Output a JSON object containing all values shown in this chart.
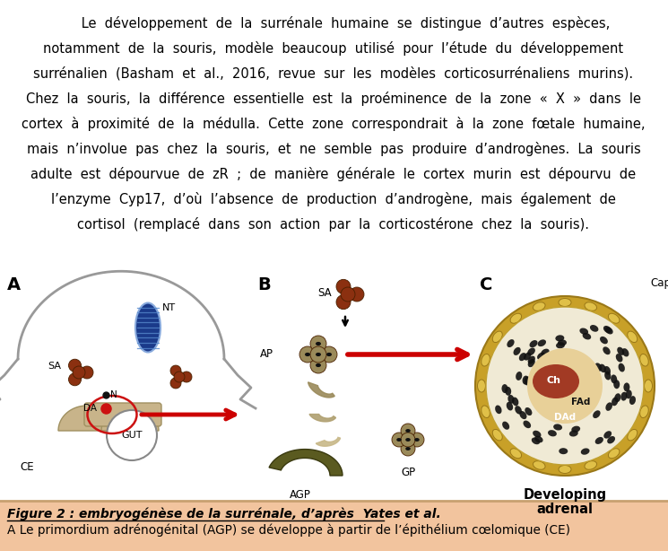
{
  "fig_width": 7.45,
  "fig_height": 6.14,
  "dpi": 100,
  "bg": "#ffffff",
  "caption_bg": "#f2c49e",
  "caption_border": "#c8a070",
  "para_lines": [
    "      Le  développement  de  la  surrénale  humaine  se  distingue  d’autres  espèces,",
    "notamment  de  la  souris,  modèle  beaucoup  utilisé  pour  l’étude  du  développement",
    "surrénalien  (Basham  et  al.,  2016,  revue  sur  les  modèles  corticosurrénaliens  murins).",
    "Chez  la  souris,  la  différence  essentielle  est  la  proéminence  de  la  zone  «  X  »  dans  le",
    "cortex  à  proximité  de  la  médulla.  Cette  zone  correspondrait  à  la  zone  fœtale  humaine,",
    "mais  n’involue  pas  chez  la  souris,  et  ne  semble  pas  produire  d’androgènes.  La  souris",
    "adulte  est  dépourvue  de  zR  ;  de  manière  générale  le  cortex  murin  est  dépourvu  de",
    "l’enzyme  Cyp17,  d’où  l’absence  de  production  d’androgène,  mais  également  de",
    "cortisol  (remplacé  dans  son  action  par  la  corticostérone  chez  la  souris)."
  ],
  "caption_bold": "Figure 2 : embryogénèse de la surrénale, d’après  Yates et al.",
  "caption_normal": "A Le primordium adrénogénital (AGP) se développe à partir de l’épithélium cœlomique (CE)"
}
